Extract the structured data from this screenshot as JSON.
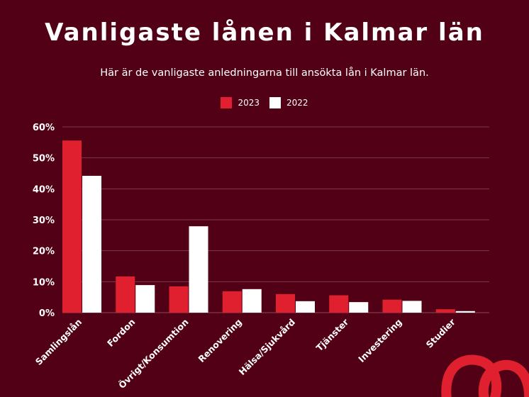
{
  "chart_data": {
    "type": "bar",
    "title": "Vanligaste lånen i Kalmar län",
    "subtitle": "Här är de vanligaste anledningarna till ansökta lån i Kalmar län.",
    "categories": [
      "Samlingslån",
      "Fordon",
      "Övrigt/Konsumtion",
      "Renovering",
      "Hälsa/Sjukvård",
      "Tjänster",
      "Investering",
      "Studier"
    ],
    "series": [
      {
        "name": "2023",
        "color": "#e0202e",
        "values": [
          55.6,
          11.7,
          8.5,
          6.9,
          6.0,
          5.6,
          4.2,
          1.1
        ]
      },
      {
        "name": "2022",
        "color": "#ffffff",
        "values": [
          44.2,
          8.9,
          27.9,
          7.6,
          3.7,
          3.4,
          3.8,
          0.5
        ]
      }
    ],
    "yticks": [
      "0%",
      "10%",
      "20%",
      "30%",
      "40%",
      "50%",
      "60%"
    ],
    "ylim": [
      0,
      60
    ],
    "grid": true,
    "legend": "top-center"
  },
  "colors": {
    "background": "#520015",
    "accent": "#e0202e"
  }
}
